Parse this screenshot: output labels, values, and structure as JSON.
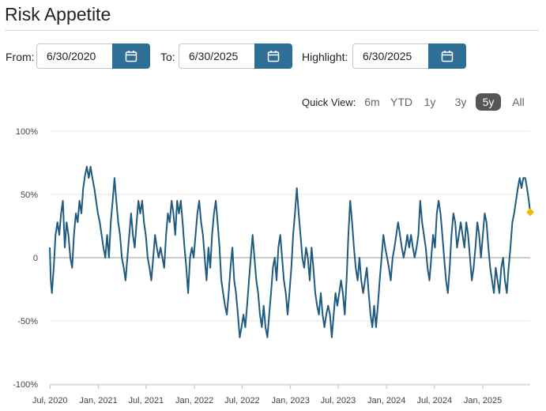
{
  "page": {
    "title": "Risk Appetite"
  },
  "filters": {
    "from_label": "From:",
    "from_value": "6/30/2020",
    "to_label": "To:",
    "to_value": "6/30/2025",
    "highlight_label": "Highlight:",
    "highlight_value": "6/30/2025",
    "calendar_icon": "calendar-icon"
  },
  "quick_view": {
    "label": "Quick View:",
    "options": [
      "6m",
      "YTD",
      "1y",
      "3y",
      "5y",
      "All"
    ],
    "selected": "5y"
  },
  "colors": {
    "accent": "#2f6f96",
    "line": "#1f5a7f",
    "highlight_marker": "#f5b800",
    "grid": "#e4e4e4",
    "zero_line": "#9a9a9a"
  },
  "chart_data": {
    "type": "line",
    "title": "",
    "xlabel": "",
    "ylabel": "",
    "ylim": [
      -100,
      100
    ],
    "y_ticks": [
      100,
      50,
      0,
      -50,
      -100
    ],
    "y_tick_labels": [
      "100%",
      "50%",
      "0",
      "-50%",
      "-100%"
    ],
    "x_ticks": [
      "2020-07-01",
      "2021-01-01",
      "2021-07-01",
      "2022-01-01",
      "2022-07-01",
      "2023-01-01",
      "2023-07-01",
      "2024-01-01",
      "2024-07-01",
      "2025-01-01"
    ],
    "x_tick_labels": [
      "Jul, 2020",
      "Jan, 2021",
      "Jul, 2021",
      "Jan, 2022",
      "Jul, 2022",
      "Jan, 2023",
      "Jul, 2023",
      "Jan, 2024",
      "Jul, 2024",
      "Jan, 2025"
    ],
    "x_range": [
      "2020-06-30",
      "2025-06-30"
    ],
    "grid": true,
    "highlight": {
      "x": "2025-06-30",
      "y": 36
    },
    "series": [
      {
        "points": [
          [
            "2020-06-30",
            8
          ],
          [
            "2020-07-04",
            -18
          ],
          [
            "2020-07-08",
            -28
          ],
          [
            "2020-07-15",
            -8
          ],
          [
            "2020-07-22",
            18
          ],
          [
            "2020-07-29",
            28
          ],
          [
            "2020-08-05",
            18
          ],
          [
            "2020-08-12",
            35
          ],
          [
            "2020-08-19",
            45
          ],
          [
            "2020-08-26",
            8
          ],
          [
            "2020-09-02",
            28
          ],
          [
            "2020-09-09",
            18
          ],
          [
            "2020-09-16",
            0
          ],
          [
            "2020-09-23",
            -8
          ],
          [
            "2020-09-30",
            18
          ],
          [
            "2020-10-07",
            35
          ],
          [
            "2020-10-14",
            28
          ],
          [
            "2020-10-21",
            45
          ],
          [
            "2020-10-28",
            35
          ],
          [
            "2020-11-04",
            55
          ],
          [
            "2020-11-11",
            65
          ],
          [
            "2020-11-18",
            72
          ],
          [
            "2020-11-25",
            63
          ],
          [
            "2020-12-02",
            72
          ],
          [
            "2020-12-09",
            63
          ],
          [
            "2020-12-16",
            55
          ],
          [
            "2020-12-23",
            45
          ],
          [
            "2020-12-30",
            35
          ],
          [
            "2021-01-06",
            28
          ],
          [
            "2021-01-13",
            18
          ],
          [
            "2021-01-20",
            8
          ],
          [
            "2021-01-27",
            0
          ],
          [
            "2021-02-03",
            18
          ],
          [
            "2021-02-10",
            0
          ],
          [
            "2021-02-17",
            28
          ],
          [
            "2021-02-24",
            45
          ],
          [
            "2021-03-03",
            63
          ],
          [
            "2021-03-10",
            45
          ],
          [
            "2021-03-17",
            28
          ],
          [
            "2021-03-24",
            18
          ],
          [
            "2021-03-31",
            0
          ],
          [
            "2021-04-07",
            -8
          ],
          [
            "2021-04-14",
            -18
          ],
          [
            "2021-04-21",
            0
          ],
          [
            "2021-04-28",
            18
          ],
          [
            "2021-05-05",
            35
          ],
          [
            "2021-05-12",
            18
          ],
          [
            "2021-05-19",
            8
          ],
          [
            "2021-05-26",
            28
          ],
          [
            "2021-06-02",
            45
          ],
          [
            "2021-06-09",
            35
          ],
          [
            "2021-06-16",
            45
          ],
          [
            "2021-06-23",
            28
          ],
          [
            "2021-06-30",
            18
          ],
          [
            "2021-07-07",
            0
          ],
          [
            "2021-07-14",
            -8
          ],
          [
            "2021-07-21",
            -18
          ],
          [
            "2021-07-28",
            0
          ],
          [
            "2021-08-04",
            18
          ],
          [
            "2021-08-11",
            8
          ],
          [
            "2021-08-18",
            0
          ],
          [
            "2021-08-25",
            8
          ],
          [
            "2021-09-01",
            0
          ],
          [
            "2021-09-08",
            -8
          ],
          [
            "2021-09-15",
            18
          ],
          [
            "2021-09-22",
            35
          ],
          [
            "2021-09-29",
            28
          ],
          [
            "2021-10-06",
            45
          ],
          [
            "2021-10-13",
            35
          ],
          [
            "2021-10-20",
            18
          ],
          [
            "2021-10-27",
            45
          ],
          [
            "2021-11-03",
            35
          ],
          [
            "2021-11-10",
            45
          ],
          [
            "2021-11-17",
            28
          ],
          [
            "2021-11-24",
            8
          ],
          [
            "2021-12-01",
            -8
          ],
          [
            "2021-12-08",
            -28
          ],
          [
            "2021-12-15",
            0
          ],
          [
            "2021-12-22",
            8
          ],
          [
            "2021-12-29",
            0
          ],
          [
            "2022-01-05",
            18
          ],
          [
            "2022-01-12",
            35
          ],
          [
            "2022-01-19",
            45
          ],
          [
            "2022-01-26",
            28
          ],
          [
            "2022-02-02",
            18
          ],
          [
            "2022-02-09",
            0
          ],
          [
            "2022-02-16",
            -18
          ],
          [
            "2022-02-23",
            8
          ],
          [
            "2022-03-02",
            -8
          ],
          [
            "2022-03-09",
            18
          ],
          [
            "2022-03-16",
            35
          ],
          [
            "2022-03-23",
            45
          ],
          [
            "2022-03-30",
            28
          ],
          [
            "2022-04-06",
            8
          ],
          [
            "2022-04-13",
            -18
          ],
          [
            "2022-04-20",
            -28
          ],
          [
            "2022-04-27",
            -38
          ],
          [
            "2022-05-04",
            -45
          ],
          [
            "2022-05-11",
            -28
          ],
          [
            "2022-05-18",
            -8
          ],
          [
            "2022-05-25",
            8
          ],
          [
            "2022-06-01",
            -18
          ],
          [
            "2022-06-08",
            -28
          ],
          [
            "2022-06-15",
            -45
          ],
          [
            "2022-06-22",
            -63
          ],
          [
            "2022-06-29",
            -55
          ],
          [
            "2022-07-06",
            -45
          ],
          [
            "2022-07-13",
            -55
          ],
          [
            "2022-07-20",
            -38
          ],
          [
            "2022-07-27",
            -18
          ],
          [
            "2022-08-03",
            0
          ],
          [
            "2022-08-10",
            18
          ],
          [
            "2022-08-17",
            0
          ],
          [
            "2022-08-24",
            -18
          ],
          [
            "2022-08-31",
            -28
          ],
          [
            "2022-09-07",
            -45
          ],
          [
            "2022-09-14",
            -55
          ],
          [
            "2022-09-21",
            -38
          ],
          [
            "2022-09-28",
            -55
          ],
          [
            "2022-10-05",
            -63
          ],
          [
            "2022-10-12",
            -45
          ],
          [
            "2022-10-19",
            -28
          ],
          [
            "2022-10-26",
            -8
          ],
          [
            "2022-11-02",
            0
          ],
          [
            "2022-11-09",
            -18
          ],
          [
            "2022-11-16",
            8
          ],
          [
            "2022-11-23",
            18
          ],
          [
            "2022-11-30",
            0
          ],
          [
            "2022-12-07",
            -18
          ],
          [
            "2022-12-14",
            -28
          ],
          [
            "2022-12-21",
            -45
          ],
          [
            "2022-12-28",
            -28
          ],
          [
            "2023-01-04",
            -8
          ],
          [
            "2023-01-11",
            18
          ],
          [
            "2023-01-18",
            35
          ],
          [
            "2023-01-25",
            55
          ],
          [
            "2023-02-01",
            35
          ],
          [
            "2023-02-08",
            18
          ],
          [
            "2023-02-15",
            0
          ],
          [
            "2023-02-22",
            -8
          ],
          [
            "2023-03-01",
            8
          ],
          [
            "2023-03-08",
            0
          ],
          [
            "2023-03-15",
            -18
          ],
          [
            "2023-03-22",
            8
          ],
          [
            "2023-03-29",
            -8
          ],
          [
            "2023-04-05",
            -28
          ],
          [
            "2023-04-12",
            -38
          ],
          [
            "2023-04-19",
            -45
          ],
          [
            "2023-04-26",
            -28
          ],
          [
            "2023-05-03",
            -45
          ],
          [
            "2023-05-10",
            -55
          ],
          [
            "2023-05-17",
            -45
          ],
          [
            "2023-05-24",
            -38
          ],
          [
            "2023-05-31",
            -45
          ],
          [
            "2023-06-07",
            -63
          ],
          [
            "2023-06-14",
            -45
          ],
          [
            "2023-06-21",
            -28
          ],
          [
            "2023-06-28",
            -38
          ],
          [
            "2023-07-05",
            -28
          ],
          [
            "2023-07-12",
            -18
          ],
          [
            "2023-07-19",
            -28
          ],
          [
            "2023-07-26",
            -45
          ],
          [
            "2023-08-02",
            -18
          ],
          [
            "2023-08-09",
            18
          ],
          [
            "2023-08-16",
            45
          ],
          [
            "2023-08-23",
            28
          ],
          [
            "2023-08-30",
            8
          ],
          [
            "2023-09-06",
            -8
          ],
          [
            "2023-09-13",
            -18
          ],
          [
            "2023-09-20",
            0
          ],
          [
            "2023-09-27",
            -18
          ],
          [
            "2023-10-04",
            -28
          ],
          [
            "2023-10-11",
            -18
          ],
          [
            "2023-10-18",
            -8
          ],
          [
            "2023-10-25",
            -28
          ],
          [
            "2023-11-01",
            -45
          ],
          [
            "2023-11-08",
            -55
          ],
          [
            "2023-11-15",
            -38
          ],
          [
            "2023-11-22",
            -55
          ],
          [
            "2023-11-29",
            -38
          ],
          [
            "2023-12-06",
            -18
          ],
          [
            "2023-12-13",
            0
          ],
          [
            "2023-12-20",
            18
          ],
          [
            "2023-12-27",
            8
          ],
          [
            "2024-01-03",
            0
          ],
          [
            "2024-01-10",
            -8
          ],
          [
            "2024-01-17",
            -18
          ],
          [
            "2024-01-24",
            0
          ],
          [
            "2024-01-31",
            8
          ],
          [
            "2024-02-07",
            18
          ],
          [
            "2024-02-14",
            28
          ],
          [
            "2024-02-21",
            18
          ],
          [
            "2024-02-28",
            8
          ],
          [
            "2024-03-06",
            0
          ],
          [
            "2024-03-13",
            8
          ],
          [
            "2024-03-20",
            18
          ],
          [
            "2024-03-27",
            8
          ],
          [
            "2024-04-03",
            18
          ],
          [
            "2024-04-10",
            8
          ],
          [
            "2024-04-17",
            0
          ],
          [
            "2024-04-24",
            8
          ],
          [
            "2024-05-01",
            18
          ],
          [
            "2024-05-08",
            45
          ],
          [
            "2024-05-15",
            28
          ],
          [
            "2024-05-22",
            18
          ],
          [
            "2024-05-29",
            8
          ],
          [
            "2024-06-05",
            -8
          ],
          [
            "2024-06-12",
            -18
          ],
          [
            "2024-06-19",
            0
          ],
          [
            "2024-06-26",
            18
          ],
          [
            "2024-07-03",
            8
          ],
          [
            "2024-07-10",
            35
          ],
          [
            "2024-07-17",
            45
          ],
          [
            "2024-07-24",
            35
          ],
          [
            "2024-07-31",
            18
          ],
          [
            "2024-08-07",
            0
          ],
          [
            "2024-08-14",
            -18
          ],
          [
            "2024-08-21",
            -28
          ],
          [
            "2024-08-28",
            -8
          ],
          [
            "2024-09-04",
            18
          ],
          [
            "2024-09-11",
            35
          ],
          [
            "2024-09-18",
            28
          ],
          [
            "2024-09-25",
            8
          ],
          [
            "2024-10-02",
            18
          ],
          [
            "2024-10-09",
            28
          ],
          [
            "2024-10-16",
            18
          ],
          [
            "2024-10-23",
            8
          ],
          [
            "2024-10-30",
            28
          ],
          [
            "2024-11-06",
            18
          ],
          [
            "2024-11-13",
            0
          ],
          [
            "2024-11-20",
            -18
          ],
          [
            "2024-11-27",
            -8
          ],
          [
            "2024-12-04",
            8
          ],
          [
            "2024-12-11",
            28
          ],
          [
            "2024-12-18",
            18
          ],
          [
            "2024-12-25",
            0
          ],
          [
            "2025-01-01",
            18
          ],
          [
            "2025-01-08",
            35
          ],
          [
            "2025-01-15",
            28
          ],
          [
            "2025-01-22",
            8
          ],
          [
            "2025-01-29",
            -8
          ],
          [
            "2025-02-05",
            -18
          ],
          [
            "2025-02-12",
            -28
          ],
          [
            "2025-02-19",
            -8
          ],
          [
            "2025-02-26",
            -18
          ],
          [
            "2025-03-05",
            -28
          ],
          [
            "2025-03-12",
            -8
          ],
          [
            "2025-03-19",
            0
          ],
          [
            "2025-03-26",
            -18
          ],
          [
            "2025-04-02",
            -28
          ],
          [
            "2025-04-09",
            -8
          ],
          [
            "2025-04-16",
            8
          ],
          [
            "2025-04-23",
            28
          ],
          [
            "2025-04-30",
            35
          ],
          [
            "2025-05-07",
            45
          ],
          [
            "2025-05-14",
            55
          ],
          [
            "2025-05-21",
            63
          ],
          [
            "2025-05-28",
            55
          ],
          [
            "2025-06-04",
            63
          ],
          [
            "2025-06-11",
            63
          ],
          [
            "2025-06-18",
            55
          ],
          [
            "2025-06-25",
            45
          ],
          [
            "2025-06-30",
            36
          ]
        ]
      }
    ]
  }
}
